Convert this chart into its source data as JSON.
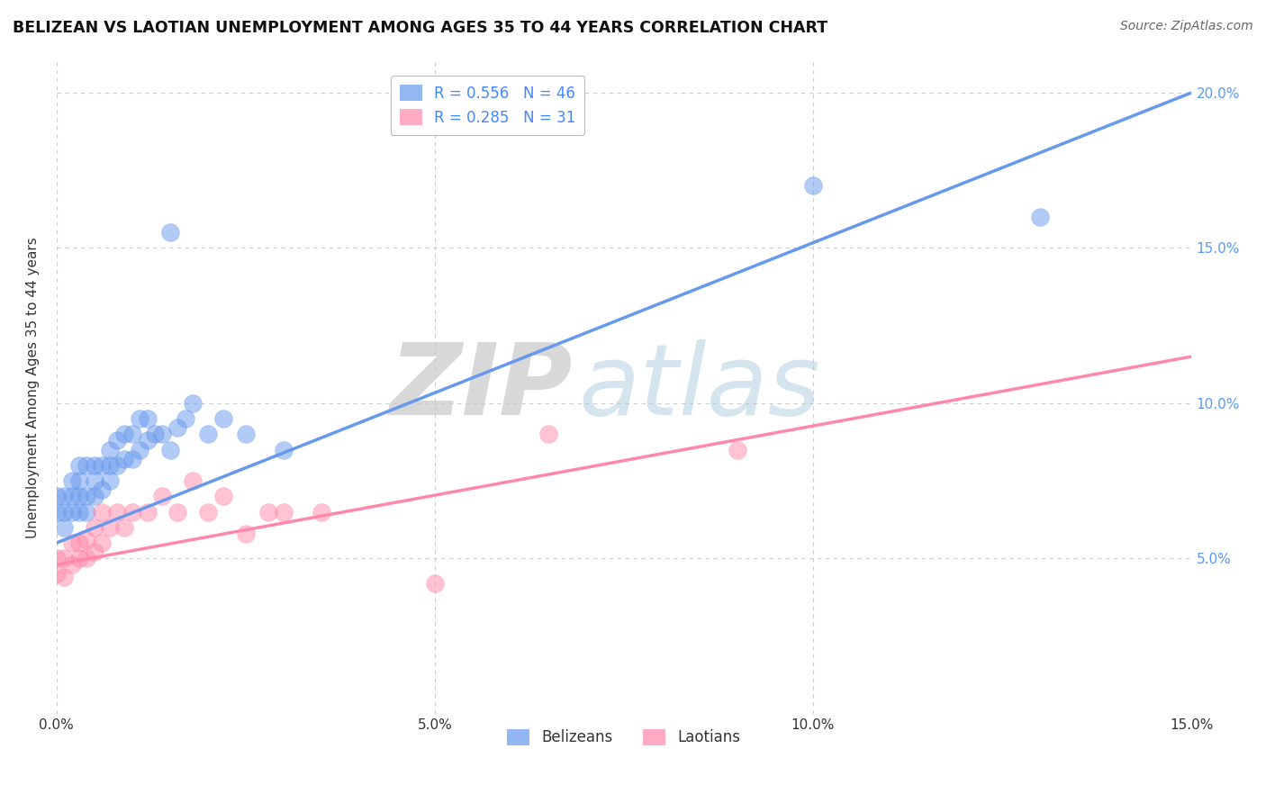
{
  "title": "BELIZEAN VS LAOTIAN UNEMPLOYMENT AMONG AGES 35 TO 44 YEARS CORRELATION CHART",
  "source": "Source: ZipAtlas.com",
  "ylabel": "Unemployment Among Ages 35 to 44 years",
  "xlim": [
    0.0,
    0.15
  ],
  "ylim": [
    0.0,
    0.21
  ],
  "xticks": [
    0.0,
    0.05,
    0.1,
    0.15
  ],
  "yticks": [
    0.05,
    0.1,
    0.15,
    0.2
  ],
  "xtick_labels": [
    "0.0%",
    "5.0%",
    "10.0%",
    "15.0%"
  ],
  "ytick_labels": [
    "5.0%",
    "10.0%",
    "15.0%",
    "20.0%"
  ],
  "belizean_color": "#6699EE",
  "laotian_color": "#FF88AA",
  "belizean_R": 0.556,
  "belizean_N": 46,
  "laotian_R": 0.285,
  "laotian_N": 31,
  "bel_x": [
    0.0,
    0.0,
    0.001,
    0.001,
    0.001,
    0.002,
    0.002,
    0.002,
    0.003,
    0.003,
    0.003,
    0.003,
    0.004,
    0.004,
    0.004,
    0.005,
    0.005,
    0.005,
    0.006,
    0.006,
    0.007,
    0.007,
    0.007,
    0.008,
    0.008,
    0.009,
    0.009,
    0.01,
    0.01,
    0.011,
    0.011,
    0.012,
    0.012,
    0.013,
    0.014,
    0.015,
    0.016,
    0.017,
    0.018,
    0.02,
    0.022,
    0.025,
    0.03,
    0.015,
    0.1,
    0.13
  ],
  "bel_y": [
    0.065,
    0.07,
    0.06,
    0.065,
    0.07,
    0.065,
    0.07,
    0.075,
    0.065,
    0.07,
    0.075,
    0.08,
    0.065,
    0.07,
    0.08,
    0.07,
    0.075,
    0.08,
    0.072,
    0.08,
    0.075,
    0.08,
    0.085,
    0.08,
    0.088,
    0.082,
    0.09,
    0.082,
    0.09,
    0.085,
    0.095,
    0.088,
    0.095,
    0.09,
    0.09,
    0.085,
    0.092,
    0.095,
    0.1,
    0.09,
    0.095,
    0.09,
    0.085,
    0.155,
    0.17,
    0.16
  ],
  "lao_x": [
    0.0,
    0.0,
    0.001,
    0.001,
    0.002,
    0.002,
    0.003,
    0.003,
    0.004,
    0.004,
    0.005,
    0.005,
    0.006,
    0.006,
    0.007,
    0.008,
    0.009,
    0.01,
    0.012,
    0.014,
    0.016,
    0.018,
    0.02,
    0.022,
    0.025,
    0.028,
    0.03,
    0.035,
    0.05,
    0.065,
    0.09
  ],
  "lao_y": [
    0.045,
    0.05,
    0.044,
    0.05,
    0.048,
    0.055,
    0.05,
    0.055,
    0.05,
    0.056,
    0.052,
    0.06,
    0.055,
    0.065,
    0.06,
    0.065,
    0.06,
    0.065,
    0.065,
    0.07,
    0.065,
    0.075,
    0.065,
    0.07,
    0.058,
    0.065,
    0.065,
    0.065,
    0.042,
    0.09,
    0.085
  ],
  "bel_line_x": [
    0.0,
    0.15
  ],
  "bel_line_y": [
    0.055,
    0.2
  ],
  "lao_line_x": [
    0.0,
    0.15
  ],
  "lao_line_y": [
    0.048,
    0.115
  ],
  "watermark_zip": "ZIP",
  "watermark_atlas": "atlas",
  "background_color": "#ffffff",
  "grid_color": "#cccccc"
}
